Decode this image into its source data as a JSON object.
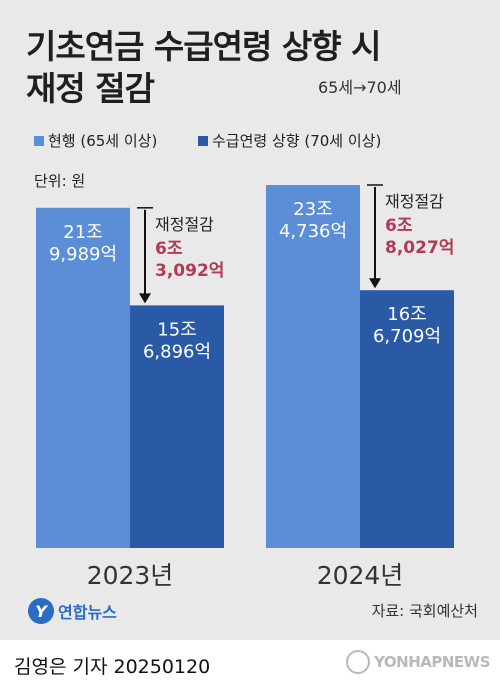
{
  "title_line1": "기초연금 수급연령 상향 시",
  "title_line2": "재정 절감",
  "subtitle": "65세→70세",
  "unit": "단위: 원",
  "source": "자료: 국회예산처",
  "byline": "김영은 기자  20250120",
  "logo_text": "연합뉴스",
  "watermark_text": "YONHAPNEWS",
  "colors": {
    "current": "#5b8ed6",
    "raised": "#2a5aa6",
    "saving": "#b23a54"
  },
  "chart_data": {
    "type": "bar",
    "categories": [
      "2023년",
      "2024년"
    ],
    "series": [
      {
        "name": "현행 (65세 이상)",
        "values": [
          219989,
          234736
        ],
        "labels": [
          [
            "21조",
            "9,989억"
          ],
          [
            "23조",
            "4,736억"
          ]
        ]
      },
      {
        "name": "수급연령 상향 (70세 이상)",
        "values": [
          156896,
          166709
        ],
        "labels": [
          [
            "15조",
            "6,896억"
          ],
          [
            "16조",
            "6,709억"
          ]
        ]
      }
    ],
    "savings": [
      {
        "label": "재정절감",
        "value": 63092,
        "text": [
          "6조",
          "3,092억"
        ]
      },
      {
        "label": "재정절감",
        "value": 68027,
        "text": [
          "6조",
          "8,027억"
        ]
      }
    ],
    "value_unit": "억 원",
    "legend_position": "top-left",
    "grid": false
  }
}
